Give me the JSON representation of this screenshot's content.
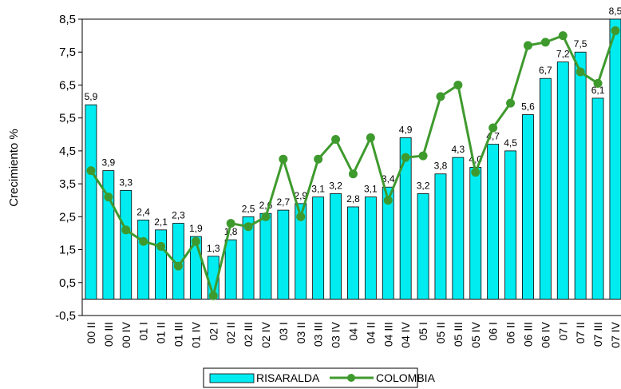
{
  "chart_data": {
    "type": "bar_line",
    "y_label": "Crecimiento %",
    "categories": [
      "00 II",
      "00 III",
      "00 IV",
      "01 I",
      "01 II",
      "01 III",
      "01 IV",
      "02 I",
      "02 II",
      "02 III",
      "02 IV",
      "03 I",
      "03 II",
      "03 III",
      "03 IV",
      "04 I",
      "04 II",
      "04 III",
      "04 IV",
      "05 I",
      "05 II",
      "05 III",
      "05 IV",
      "06 I",
      "06 II",
      "06 III",
      "06 IV",
      "07 I",
      "07 II",
      "07 III",
      "07 IV"
    ],
    "series": [
      {
        "name": "RISARALDA",
        "kind": "bar",
        "color": "#00ecf0",
        "values": [
          5.9,
          3.9,
          3.3,
          2.4,
          2.1,
          2.3,
          1.9,
          1.3,
          1.8,
          2.5,
          2.6,
          2.7,
          2.9,
          3.1,
          3.2,
          2.8,
          3.1,
          3.4,
          4.9,
          3.2,
          3.8,
          4.3,
          4.0,
          4.7,
          4.5,
          5.6,
          6.7,
          7.2,
          7.5,
          6.1,
          8.5
        ],
        "value_labels": [
          "5,9",
          "3,9",
          "3,3",
          "2,4",
          "2,1",
          "2,3",
          "1,9",
          "1,3",
          "1,8",
          "2,5",
          "2,6",
          "2,7",
          "2,9",
          "3,1",
          "3,2",
          "2,8",
          "3,1",
          "3,4",
          "4,9",
          "3,2",
          "3,8",
          "4,3",
          "4,0",
          "4,7",
          "4,5",
          "5,6",
          "6,7",
          "7,2",
          "7,5",
          "6,1",
          "8,5"
        ]
      },
      {
        "name": "COLOMBIA",
        "kind": "line",
        "color": "#3f9a2e",
        "values": [
          3.9,
          3.1,
          2.1,
          1.75,
          1.6,
          1.0,
          1.75,
          0.1,
          2.3,
          2.2,
          2.5,
          4.25,
          2.5,
          4.25,
          4.85,
          3.8,
          4.9,
          3.0,
          4.3,
          4.35,
          6.15,
          6.5,
          3.85,
          5.2,
          5.95,
          7.7,
          7.8,
          8.0,
          6.9,
          6.55,
          8.15
        ]
      }
    ],
    "ylim": [
      -0.5,
      8.5
    ],
    "yticks": [
      {
        "value": -0.5,
        "label": "-0,5"
      },
      {
        "value": 0.5,
        "label": "0,5"
      },
      {
        "value": 1.5,
        "label": "1,5"
      },
      {
        "value": 2.5,
        "label": "2,5"
      },
      {
        "value": 3.5,
        "label": "3,5"
      },
      {
        "value": 4.5,
        "label": "4,5"
      },
      {
        "value": 5.5,
        "label": "5,5"
      },
      {
        "value": 6.5,
        "label": "6,5"
      },
      {
        "value": 7.5,
        "label": "7,5"
      },
      {
        "value": 8.5,
        "label": "8,5"
      }
    ],
    "grid": false,
    "legend": "bottom"
  }
}
